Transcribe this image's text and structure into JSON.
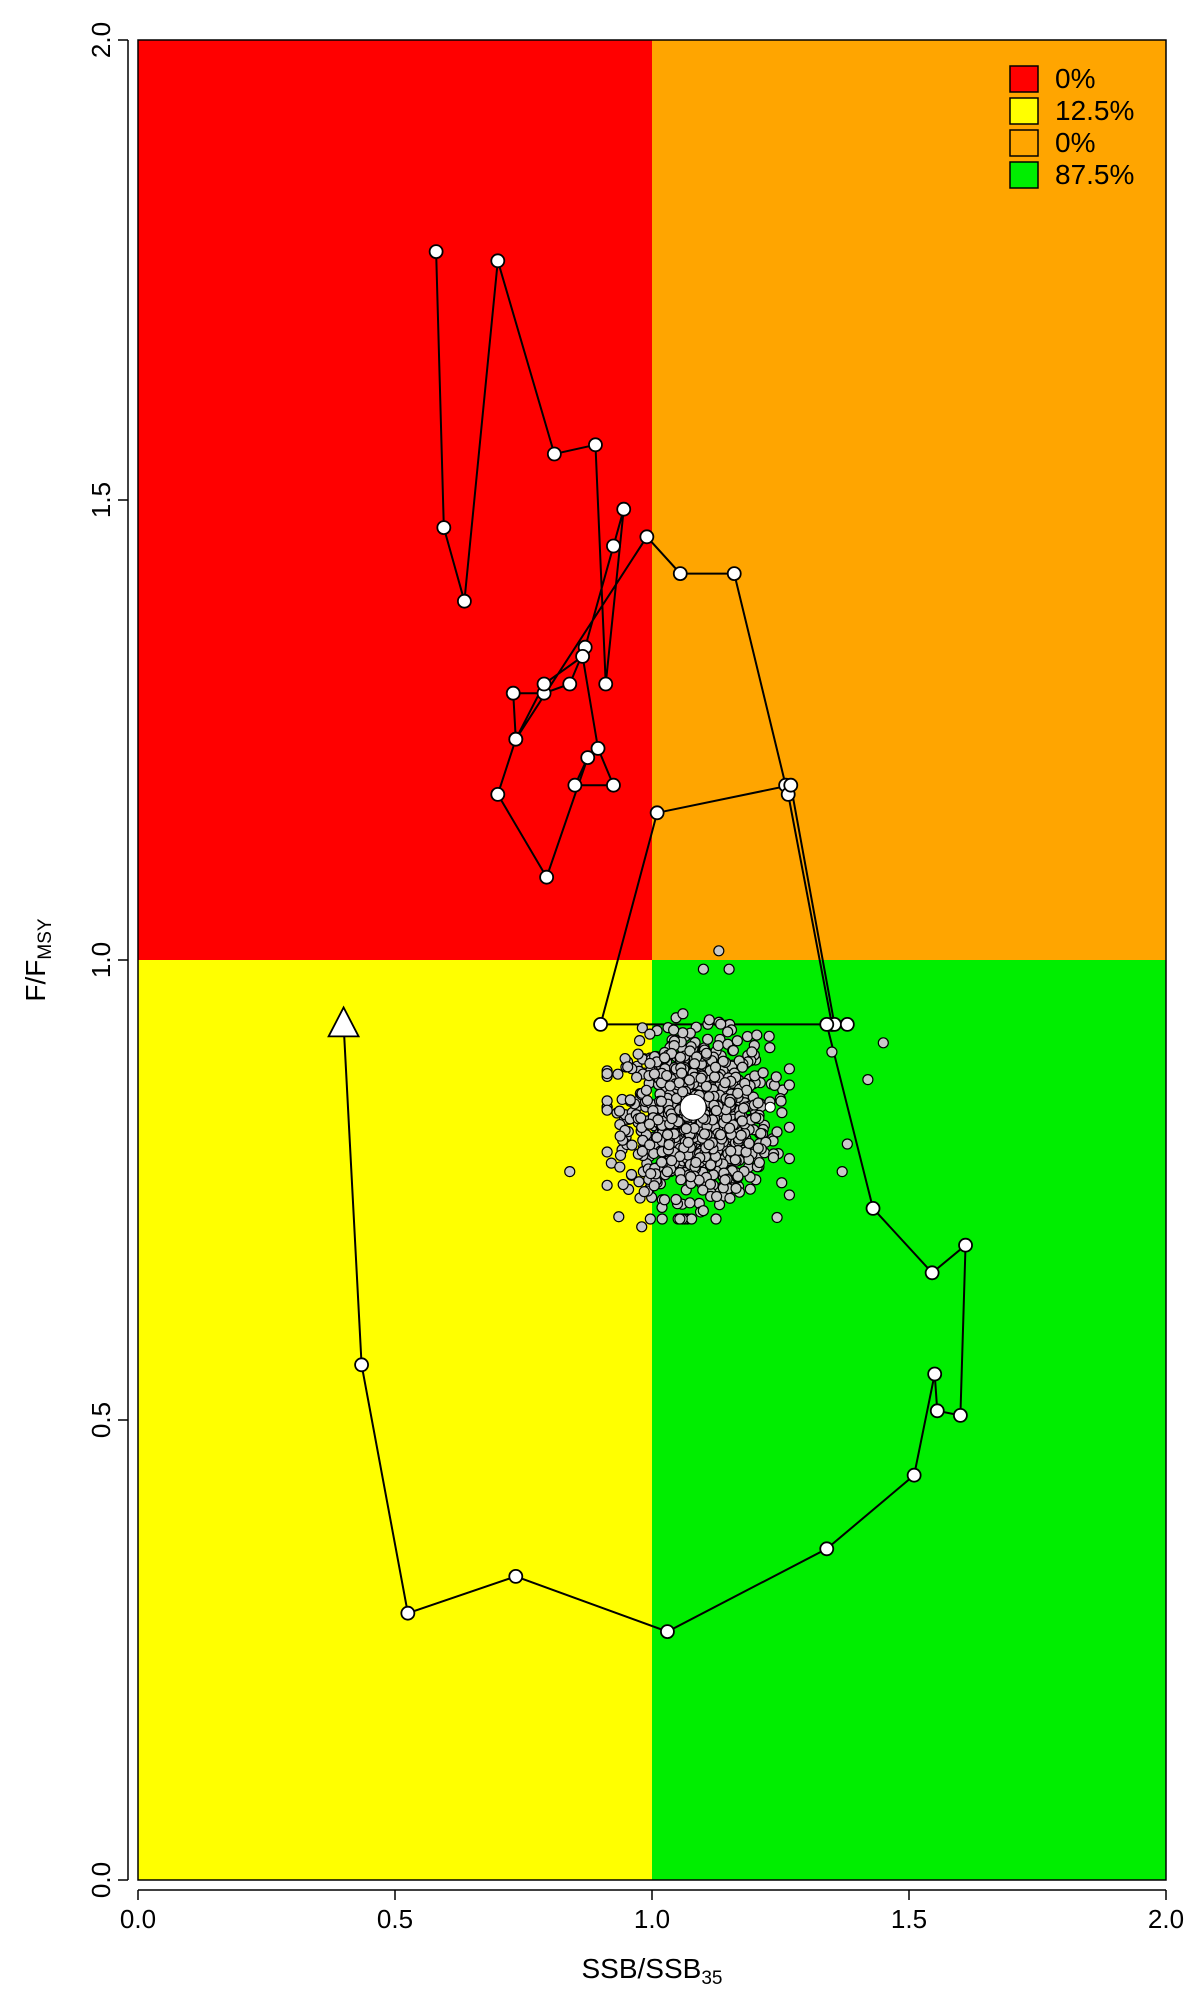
{
  "chart_data": {
    "type": "scatter",
    "title": "",
    "xlabel": {
      "main": "SSB/SSB",
      "sub": "35"
    },
    "ylabel": {
      "main": "F/F",
      "sub": "MSY"
    },
    "xlim": [
      0,
      2
    ],
    "ylim": [
      0,
      2
    ],
    "x_ticks": [
      "0.0",
      "0.5",
      "1.0",
      "1.5",
      "2.0"
    ],
    "y_ticks": [
      "0.0",
      "0.5",
      "1.0",
      "1.5",
      "2.0"
    ],
    "grid": false,
    "quadrants": [
      {
        "name": "overfished-and-overfishing",
        "xrange": [
          0,
          1
        ],
        "yrange": [
          1,
          2
        ],
        "color": "#ff0000"
      },
      {
        "name": "overfishing-not-overfished",
        "xrange": [
          1,
          2
        ],
        "yrange": [
          1,
          2
        ],
        "color": "#ffa500"
      },
      {
        "name": "overfished-not-overfishing",
        "xrange": [
          0,
          1
        ],
        "yrange": [
          0,
          1
        ],
        "color": "#ffff00"
      },
      {
        "name": "not-overfished-no-overfishing",
        "xrange": [
          1,
          2
        ],
        "yrange": [
          0,
          1
        ],
        "color": "#00ee00"
      }
    ],
    "legend": {
      "position": "top-right",
      "entries": [
        {
          "label": "0%",
          "color": "#ff0000"
        },
        {
          "label": "12.5%",
          "color": "#ffff00"
        },
        {
          "label": "0%",
          "color": "#ffa500"
        },
        {
          "label": "87.5%",
          "color": "#00ee00"
        }
      ]
    },
    "series": [
      {
        "kind": "trajectory",
        "points": [
          [
            0.58,
            1.77
          ],
          [
            0.595,
            1.47
          ],
          [
            0.635,
            1.39
          ],
          [
            0.7,
            1.76
          ],
          [
            0.81,
            1.55
          ],
          [
            0.89,
            1.56
          ],
          [
            0.91,
            1.3
          ],
          [
            0.945,
            1.49
          ],
          [
            0.925,
            1.45
          ],
          [
            0.87,
            1.34
          ],
          [
            0.84,
            1.3
          ],
          [
            0.79,
            1.29
          ],
          [
            0.73,
            1.29
          ],
          [
            0.735,
            1.24
          ],
          [
            0.79,
            1.3
          ],
          [
            0.865,
            1.33
          ],
          [
            0.895,
            1.23
          ],
          [
            0.925,
            1.19
          ],
          [
            0.85,
            1.19
          ],
          [
            0.875,
            1.22
          ],
          [
            0.795,
            1.09
          ],
          [
            0.7,
            1.18
          ],
          [
            0.735,
            1.24
          ],
          [
            0.99,
            1.46
          ],
          [
            1.055,
            1.42
          ],
          [
            1.16,
            1.42
          ],
          [
            1.26,
            1.19
          ],
          [
            1.265,
            1.18
          ],
          [
            1.35,
            0.93
          ],
          [
            1.35,
            0.93
          ],
          [
            1.355,
            0.93
          ],
          [
            1.27,
            1.19
          ],
          [
            1.01,
            1.16
          ],
          [
            0.9,
            0.93
          ],
          [
            1.38,
            0.93
          ],
          [
            1.34,
            0.93
          ],
          [
            1.43,
            0.73
          ],
          [
            1.545,
            0.66
          ],
          [
            1.61,
            0.69
          ],
          [
            1.6,
            0.505
          ],
          [
            1.555,
            0.51
          ],
          [
            1.55,
            0.55
          ],
          [
            1.51,
            0.44
          ],
          [
            1.34,
            0.36
          ],
          [
            1.03,
            0.27
          ],
          [
            0.735,
            0.33
          ],
          [
            0.525,
            0.29
          ],
          [
            0.435,
            0.56
          ],
          [
            0.4,
            0.93
          ]
        ],
        "start_marker": "large-white-circle",
        "end_marker": "triangle",
        "current_point": [
          1.08,
          0.84
        ],
        "current_point_alt": [
          1.23,
          0.84
        ],
        "end_point": [
          0.4,
          0.93
        ]
      },
      {
        "kind": "uncertainty-cloud",
        "center": [
          1.09,
          0.83
        ],
        "x_spread": 0.11,
        "y_spread": 0.055,
        "n_points": 1100,
        "outliers": [
          [
            1.45,
            0.91
          ],
          [
            1.42,
            0.87
          ],
          [
            1.38,
            0.8
          ],
          [
            1.37,
            0.77
          ],
          [
            1.13,
            1.01
          ],
          [
            1.15,
            0.99
          ],
          [
            1.1,
            0.99
          ],
          [
            0.98,
            0.71
          ],
          [
            0.84,
            0.77
          ],
          [
            1.35,
            0.9
          ]
        ],
        "color": "#c8c8c8"
      }
    ]
  }
}
